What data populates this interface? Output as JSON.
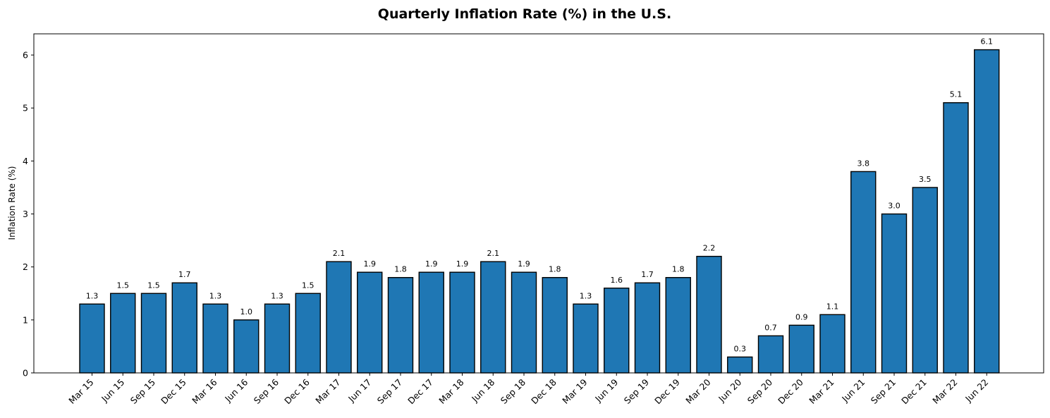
{
  "chart_data": {
    "type": "bar",
    "title": "Quarterly Inflation Rate (%) in the U.S.",
    "xlabel": "",
    "ylabel": "Inflation Rate (%)",
    "categories": [
      "Mar 15",
      "Jun 15",
      "Sep 15",
      "Dec 15",
      "Mar 16",
      "Jun 16",
      "Sep 16",
      "Dec 16",
      "Mar 17",
      "Jun 17",
      "Sep 17",
      "Dec 17",
      "Mar 18",
      "Jun 18",
      "Sep 18",
      "Dec 18",
      "Mar 19",
      "Jun 19",
      "Sep 19",
      "Dec 19",
      "Mar 20",
      "Jun 20",
      "Sep 20",
      "Dec 20",
      "Mar 21",
      "Jun 21",
      "Sep 21",
      "Dec 21",
      "Mar 22",
      "Jun 22"
    ],
    "values": [
      1.3,
      1.5,
      1.5,
      1.7,
      1.3,
      1.0,
      1.3,
      1.5,
      2.1,
      1.9,
      1.8,
      1.9,
      1.9,
      2.1,
      1.9,
      1.8,
      1.3,
      1.6,
      1.7,
      1.8,
      2.2,
      0.3,
      0.7,
      0.9,
      1.1,
      3.8,
      3.0,
      3.5,
      5.1,
      6.1
    ],
    "data_labels": [
      "1.3",
      "1.5",
      "1.5",
      "1.7",
      "1.3",
      "1.0",
      "1.3",
      "1.5",
      "2.1",
      "1.9",
      "1.8",
      "1.9",
      "1.9",
      "2.1",
      "1.9",
      "1.8",
      "1.3",
      "1.6",
      "1.7",
      "1.8",
      "2.2",
      "0.3",
      "0.7",
      "0.9",
      "1.1",
      "3.8",
      "3.0",
      "3.5",
      "5.1",
      "6.1"
    ],
    "ylim": [
      0,
      6.4
    ],
    "yticks": [
      "0",
      "1",
      "2",
      "3",
      "4",
      "5",
      "6"
    ],
    "bar_color": "#1f77b4",
    "edge_color": "#000000",
    "grid": false,
    "legend": "none"
  }
}
